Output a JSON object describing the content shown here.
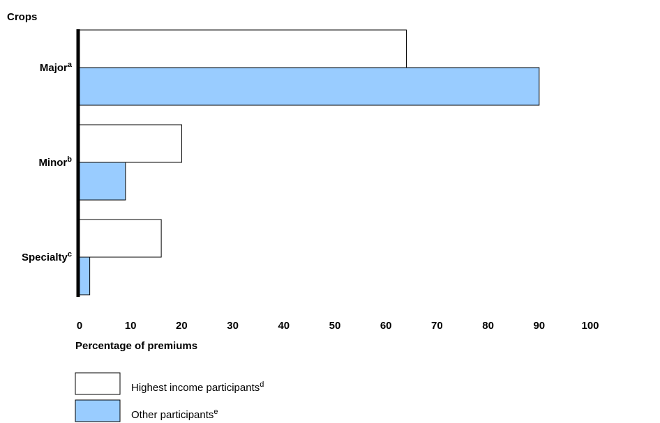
{
  "chart_data": {
    "type": "bar",
    "orientation": "horizontal",
    "y_axis_title": "Crops",
    "xlabel": "Percentage of premiums",
    "xlim": [
      0,
      100
    ],
    "x_ticks": [
      "0",
      "10",
      "20",
      "30",
      "40",
      "50",
      "60",
      "70",
      "80",
      "90",
      "100"
    ],
    "categories": [
      {
        "label": "Major",
        "sup": "a"
      },
      {
        "label": "Minor",
        "sup": "b"
      },
      {
        "label": "Specialty",
        "sup": "c"
      }
    ],
    "series": [
      {
        "name": "Highest income participants",
        "sup": "d",
        "color": "#ffffff",
        "values": [
          64,
          20,
          16
        ]
      },
      {
        "name": "Other participants",
        "sup": "e",
        "color": "#99ccff",
        "values": [
          90,
          9,
          2
        ]
      }
    ],
    "grid": false,
    "legend_position": "bottom-left"
  }
}
